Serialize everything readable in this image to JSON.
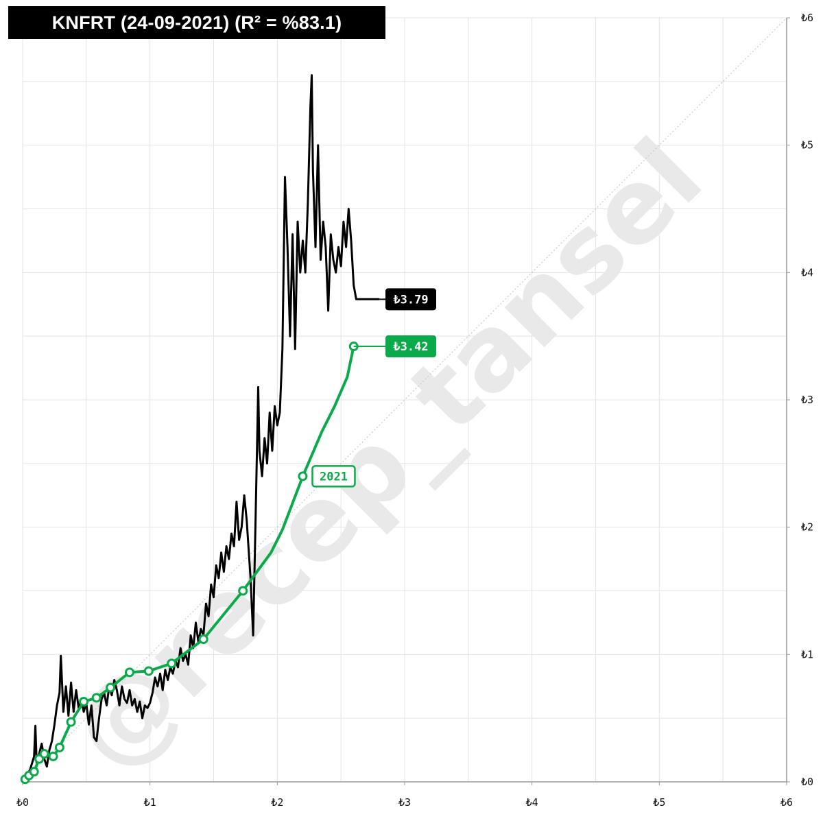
{
  "title": "KNFRT (24-09-2021) (R² = %83.1)",
  "watermark": "@recep_tansel",
  "colors": {
    "price": "#000000",
    "trend": "#0aaa4a",
    "grid": "#e4e4e4",
    "diagonal": "#c8c8c8",
    "background": "#ffffff"
  },
  "chart_data": {
    "type": "line",
    "title": "KNFRT (24-09-2021) (R² = %83.1)",
    "xlabel": "",
    "ylabel": "",
    "xlim": [
      0,
      6
    ],
    "ylim": [
      0,
      6
    ],
    "x_ticks": [
      "₺0",
      "₺1",
      "₺2",
      "₺3",
      "₺4",
      "₺5",
      "₺6"
    ],
    "y_ticks": [
      "₺0",
      "₺1",
      "₺2",
      "₺3",
      "₺4",
      "₺5",
      "₺6"
    ],
    "y_axis_side": "right",
    "grid": true,
    "diagonal_reference": true,
    "series": [
      {
        "name": "",
        "color": "#000000",
        "end_label": "₺3.79",
        "points": [
          [
            0.0,
            0.0
          ],
          [
            0.03,
            0.04
          ],
          [
            0.06,
            0.1
          ],
          [
            0.09,
            0.2
          ],
          [
            0.1,
            0.44
          ],
          [
            0.11,
            0.15
          ],
          [
            0.13,
            0.22
          ],
          [
            0.15,
            0.3
          ],
          [
            0.17,
            0.18
          ],
          [
            0.19,
            0.12
          ],
          [
            0.21,
            0.25
          ],
          [
            0.23,
            0.32
          ],
          [
            0.25,
            0.45
          ],
          [
            0.27,
            0.6
          ],
          [
            0.29,
            0.7
          ],
          [
            0.3,
            0.99
          ],
          [
            0.32,
            0.55
          ],
          [
            0.34,
            0.75
          ],
          [
            0.36,
            0.52
          ],
          [
            0.38,
            0.78
          ],
          [
            0.4,
            0.55
          ],
          [
            0.42,
            0.72
          ],
          [
            0.44,
            0.58
          ],
          [
            0.46,
            0.65
          ],
          [
            0.48,
            0.55
          ],
          [
            0.5,
            0.62
          ],
          [
            0.52,
            0.45
          ],
          [
            0.54,
            0.6
          ],
          [
            0.56,
            0.35
          ],
          [
            0.58,
            0.32
          ],
          [
            0.6,
            0.5
          ],
          [
            0.62,
            0.65
          ],
          [
            0.64,
            0.7
          ],
          [
            0.66,
            0.6
          ],
          [
            0.68,
            0.75
          ],
          [
            0.7,
            0.68
          ],
          [
            0.72,
            0.8
          ],
          [
            0.74,
            0.72
          ],
          [
            0.76,
            0.6
          ],
          [
            0.78,
            0.75
          ],
          [
            0.8,
            0.65
          ],
          [
            0.82,
            0.62
          ],
          [
            0.84,
            0.72
          ],
          [
            0.86,
            0.6
          ],
          [
            0.88,
            0.65
          ],
          [
            0.9,
            0.55
          ],
          [
            0.92,
            0.63
          ],
          [
            0.94,
            0.5
          ],
          [
            0.96,
            0.6
          ],
          [
            0.98,
            0.58
          ],
          [
            1.0,
            0.62
          ],
          [
            1.02,
            0.7
          ],
          [
            1.04,
            0.82
          ],
          [
            1.06,
            0.75
          ],
          [
            1.08,
            0.85
          ],
          [
            1.1,
            0.72
          ],
          [
            1.12,
            0.88
          ],
          [
            1.14,
            0.8
          ],
          [
            1.16,
            0.9
          ],
          [
            1.18,
            0.85
          ],
          [
            1.2,
            0.95
          ],
          [
            1.22,
            0.9
          ],
          [
            1.24,
            1.05
          ],
          [
            1.26,
            0.95
          ],
          [
            1.28,
            1.0
          ],
          [
            1.3,
            0.92
          ],
          [
            1.32,
            1.15
          ],
          [
            1.34,
            1.05
          ],
          [
            1.36,
            1.25
          ],
          [
            1.38,
            1.1
          ],
          [
            1.4,
            1.2
          ],
          [
            1.42,
            1.15
          ],
          [
            1.44,
            1.4
          ],
          [
            1.46,
            1.3
          ],
          [
            1.48,
            1.55
          ],
          [
            1.5,
            1.45
          ],
          [
            1.52,
            1.7
          ],
          [
            1.54,
            1.6
          ],
          [
            1.56,
            1.8
          ],
          [
            1.58,
            1.65
          ],
          [
            1.6,
            1.85
          ],
          [
            1.62,
            1.75
          ],
          [
            1.64,
            1.95
          ],
          [
            1.66,
            1.85
          ],
          [
            1.68,
            2.2
          ],
          [
            1.7,
            1.9
          ],
          [
            1.72,
            2.0
          ],
          [
            1.74,
            2.25
          ],
          [
            1.76,
            2.05
          ],
          [
            1.77,
            1.9
          ],
          [
            1.79,
            1.6
          ],
          [
            1.81,
            1.15
          ],
          [
            1.83,
            2.1
          ],
          [
            1.85,
            3.1
          ],
          [
            1.86,
            2.6
          ],
          [
            1.88,
            2.4
          ],
          [
            1.9,
            2.7
          ],
          [
            1.92,
            2.5
          ],
          [
            1.94,
            2.9
          ],
          [
            1.96,
            2.6
          ],
          [
            1.98,
            2.95
          ],
          [
            2.0,
            2.8
          ],
          [
            2.02,
            2.9
          ],
          [
            2.04,
            3.4
          ],
          [
            2.06,
            4.75
          ],
          [
            2.08,
            4.2
          ],
          [
            2.1,
            3.5
          ],
          [
            2.12,
            4.3
          ],
          [
            2.14,
            3.4
          ],
          [
            2.16,
            4.4
          ],
          [
            2.18,
            4.0
          ],
          [
            2.2,
            4.25
          ],
          [
            2.22,
            4.0
          ],
          [
            2.24,
            4.55
          ],
          [
            2.26,
            5.3
          ],
          [
            2.27,
            5.55
          ],
          [
            2.28,
            4.8
          ],
          [
            2.3,
            4.2
          ],
          [
            2.32,
            5.0
          ],
          [
            2.34,
            4.1
          ],
          [
            2.36,
            4.4
          ],
          [
            2.38,
            4.2
          ],
          [
            2.4,
            3.7
          ],
          [
            2.42,
            4.3
          ],
          [
            2.44,
            4.1
          ],
          [
            2.46,
            4.0
          ],
          [
            2.48,
            4.2
          ],
          [
            2.5,
            4.05
          ],
          [
            2.52,
            4.4
          ],
          [
            2.54,
            4.2
          ],
          [
            2.56,
            4.5
          ],
          [
            2.58,
            4.25
          ],
          [
            2.6,
            3.9
          ],
          [
            2.62,
            3.79
          ],
          [
            2.8,
            3.79
          ]
        ]
      },
      {
        "name": "",
        "color": "#0aaa4a",
        "end_label": "₺3.42",
        "points": [
          [
            0.02,
            0.02
          ],
          [
            0.05,
            0.05
          ],
          [
            0.09,
            0.08
          ],
          [
            0.13,
            0.18
          ],
          [
            0.17,
            0.22
          ],
          [
            0.24,
            0.2
          ],
          [
            0.29,
            0.27
          ],
          [
            0.38,
            0.47
          ],
          [
            0.48,
            0.63
          ],
          [
            0.58,
            0.66
          ],
          [
            0.69,
            0.74
          ],
          [
            0.84,
            0.86
          ],
          [
            0.99,
            0.87
          ],
          [
            1.17,
            0.93
          ],
          [
            1.42,
            1.12
          ],
          [
            1.73,
            1.5
          ],
          [
            1.95,
            1.8
          ],
          [
            2.04,
            1.98
          ],
          [
            2.2,
            2.4
          ],
          [
            2.35,
            2.75
          ],
          [
            2.45,
            2.95
          ],
          [
            2.55,
            3.18
          ],
          [
            2.6,
            3.42
          ]
        ],
        "markers": [
          [
            0.02,
            0.02
          ],
          [
            0.05,
            0.05
          ],
          [
            0.09,
            0.08
          ],
          [
            0.13,
            0.18
          ],
          [
            0.17,
            0.22
          ],
          [
            0.24,
            0.2
          ],
          [
            0.29,
            0.27
          ],
          [
            0.38,
            0.47
          ],
          [
            0.48,
            0.63
          ],
          [
            0.58,
            0.66
          ],
          [
            0.69,
            0.74
          ],
          [
            0.84,
            0.86
          ],
          [
            0.99,
            0.87
          ],
          [
            1.17,
            0.93
          ],
          [
            1.42,
            1.12
          ],
          [
            1.73,
            1.5
          ],
          [
            2.2,
            2.4
          ],
          [
            2.6,
            3.42
          ]
        ],
        "annotation": {
          "text": "2021",
          "x": 2.2,
          "y": 2.4
        }
      }
    ]
  }
}
